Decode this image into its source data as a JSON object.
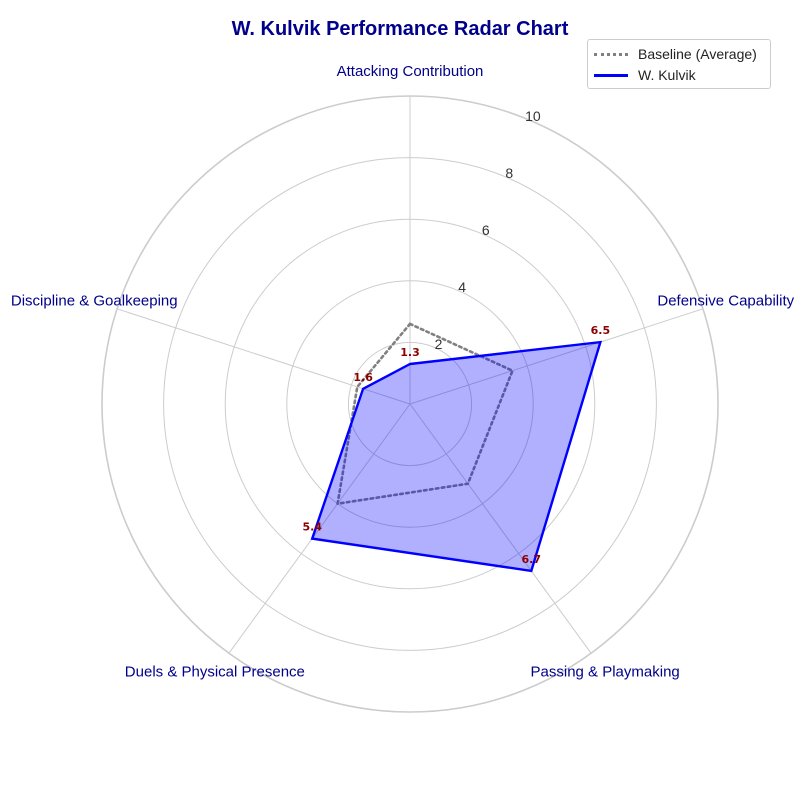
{
  "chart_data": {
    "type": "radar",
    "title": "W. Kulvik Performance Radar Chart",
    "categories": [
      "Attacking Contribution",
      "Defensive Capability",
      "Passing & Playmaking",
      "Duels & Physical Presence",
      "Discipline & Goalkeeping"
    ],
    "rlim": [
      0,
      10
    ],
    "rticks": [
      2,
      4,
      6,
      8,
      10
    ],
    "series": [
      {
        "name": "Baseline (Average)",
        "values": [
          2.6,
          3.5,
          3.2,
          4.0,
          1.8
        ],
        "color": "#808080",
        "style": "dotted",
        "fill": false
      },
      {
        "name": "W. Kulvik",
        "values": [
          1.3,
          6.5,
          6.7,
          5.4,
          1.6
        ],
        "color": "#0000ff",
        "style": "solid",
        "fill": true,
        "fill_color": "#0000ff",
        "show_labels": true
      }
    ],
    "data_labels": [
      "1.3",
      "6.5",
      "6.7",
      "5.4",
      "1.6"
    ],
    "grid": true,
    "legend": "top-right"
  }
}
